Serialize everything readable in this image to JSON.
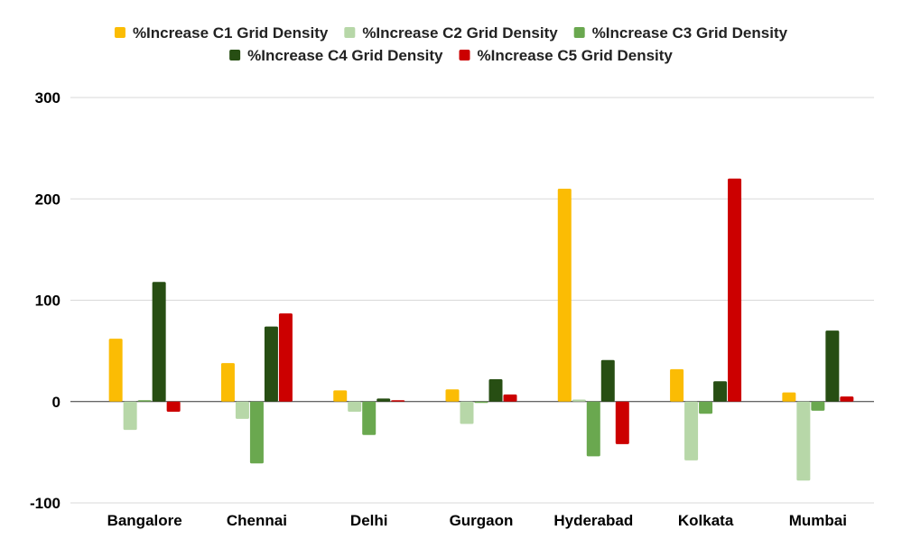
{
  "chart_data": {
    "type": "bar",
    "title": "",
    "xlabel": "",
    "ylabel": "",
    "categories": [
      "Bangalore",
      "Chennai",
      "Delhi",
      "Gurgaon",
      "Hyderabad",
      "Kolkata",
      "Mumbai"
    ],
    "series": [
      {
        "name": "%Increase C1 Grid Density",
        "color": "#fbbc04",
        "values": [
          62,
          38,
          11,
          12,
          210,
          32,
          9
        ]
      },
      {
        "name": "%Increase C2 Grid Density",
        "color": "#b7d7a8",
        "values": [
          -28,
          -17,
          -10,
          -22,
          2,
          -58,
          -78
        ]
      },
      {
        "name": "%Increase C3 Grid Density",
        "color": "#6aa84f",
        "values": [
          0,
          -61,
          -33,
          -1,
          -54,
          -12,
          -9
        ]
      },
      {
        "name": "%Increase C4 Grid Density",
        "color": "#274e13",
        "values": [
          118,
          74,
          3,
          22,
          41,
          20,
          70
        ]
      },
      {
        "name": "%Increase C5 Grid Density",
        "color": "#cc0000",
        "values": [
          -10,
          87,
          1,
          7,
          -42,
          220,
          5
        ]
      }
    ],
    "ylim": [
      -100,
      300
    ],
    "yticks": [
      -100,
      0,
      100,
      200,
      300
    ],
    "ytick_labels": [
      "-100",
      "0",
      "100",
      "200",
      "300"
    ],
    "grid": true,
    "legend": "top-center"
  }
}
